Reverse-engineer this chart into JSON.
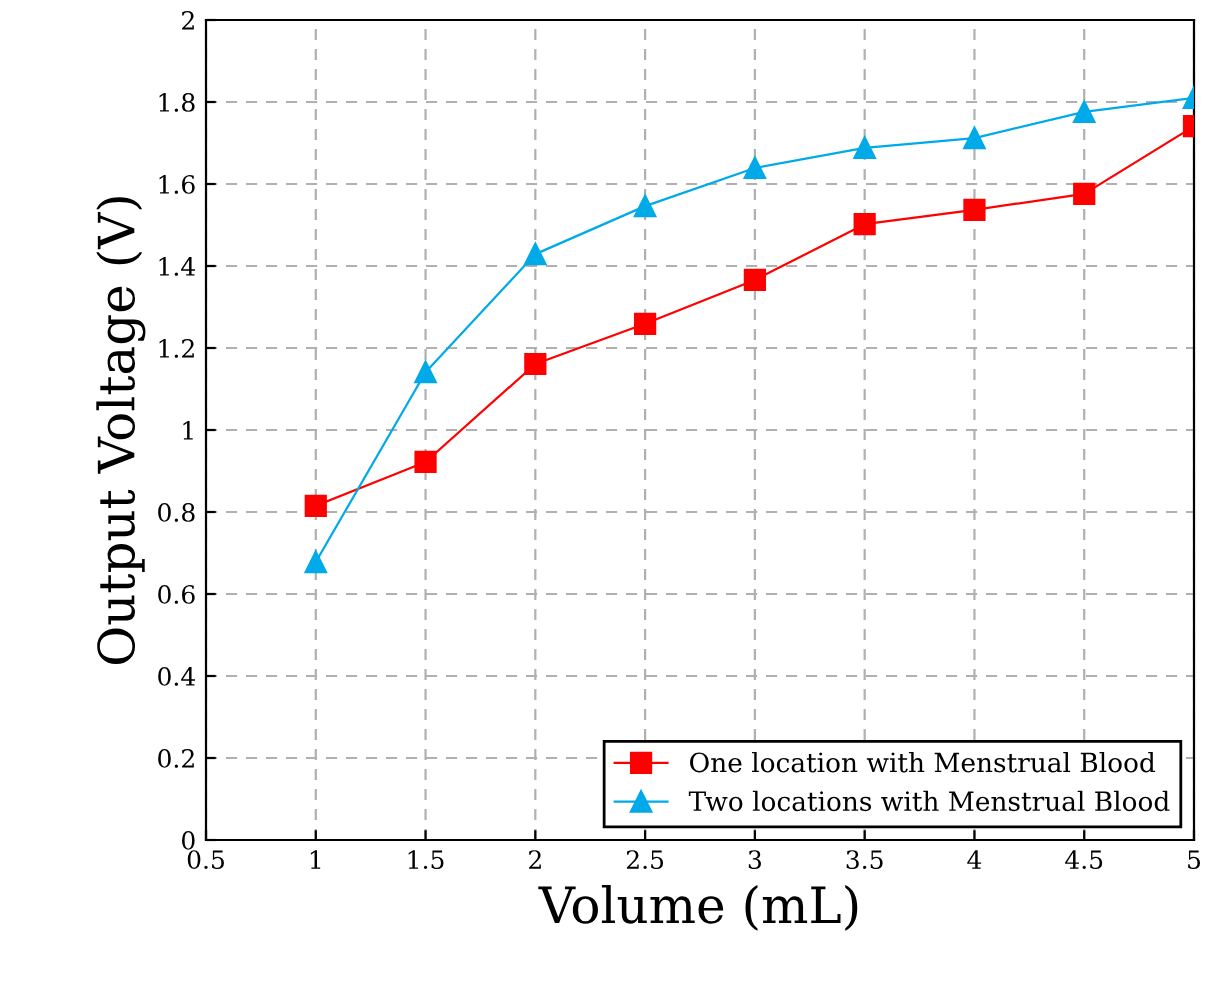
{
  "chart_data": {
    "type": "line",
    "xlabel": "Volume (mL)",
    "ylabel": "Output Voltage (V)",
    "x": [
      1,
      1.5,
      2,
      2.5,
      3,
      3.5,
      4,
      4.5,
      5
    ],
    "series": [
      {
        "name": "One location with Menstrual Blood",
        "color": "#ff0000",
        "marker": "square",
        "values": [
          0.815,
          0.922,
          1.161,
          1.259,
          1.366,
          1.502,
          1.537,
          1.576,
          1.741
        ]
      },
      {
        "name": "Two locations with Menstrual Blood",
        "color": "#00a9e8",
        "marker": "triangle",
        "values": [
          0.678,
          1.141,
          1.429,
          1.546,
          1.639,
          1.688,
          1.712,
          1.776,
          1.81
        ]
      }
    ],
    "xlim": [
      0.5,
      5
    ],
    "xticks": [
      0.5,
      1,
      1.5,
      2,
      2.5,
      3,
      3.5,
      4,
      4.5,
      5
    ],
    "ylim": [
      0,
      2
    ],
    "yticks": [
      0,
      0.2,
      0.4,
      0.6,
      0.8,
      1,
      1.2,
      1.4,
      1.6,
      1.8,
      2
    ],
    "grid": true,
    "legend": "bottom right",
    "line_style": "solid"
  }
}
